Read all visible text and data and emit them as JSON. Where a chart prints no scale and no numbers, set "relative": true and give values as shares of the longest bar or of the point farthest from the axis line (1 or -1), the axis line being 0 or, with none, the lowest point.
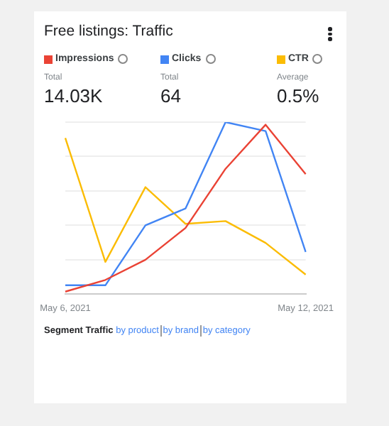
{
  "chart_data": {
    "type": "line",
    "title": "Free listings: Traffic",
    "categories": [
      "May 6, 2021",
      null,
      null,
      null,
      null,
      null,
      "May 12, 2021"
    ],
    "relative": true,
    "grid": "y",
    "legend": "top left",
    "marker": "none",
    "series": [
      {
        "name": "Impressions",
        "color": "#ea4335",
        "values": [
          0.015,
          0.083,
          0.2,
          0.385,
          0.729,
          0.985,
          0.698
        ]
      },
      {
        "name": "Clicks",
        "color": "#4285f4",
        "values": [
          0.052,
          0.052,
          0.4,
          0.498,
          1,
          0.948,
          0.246
        ]
      },
      {
        "name": "CTR",
        "color": "#fbbc04",
        "values": [
          0.908,
          0.188,
          0.622,
          0.409,
          0.425,
          0.298,
          0.114
        ]
      }
    ],
    "annotations": [
      "Total",
      "14.03K",
      "Total",
      "64",
      "Average",
      "0.5%",
      "Segment Traffic",
      "by product",
      "by brand",
      "by category"
    ]
  }
}
